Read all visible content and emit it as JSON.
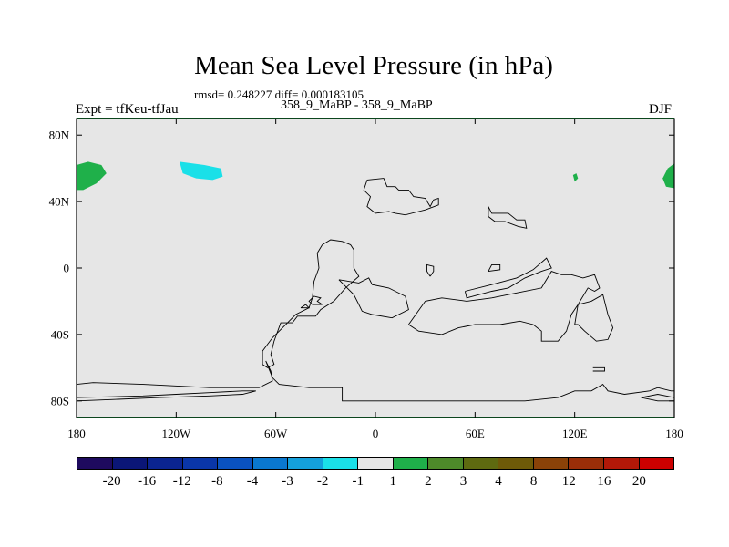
{
  "header": {
    "title": "Mean Sea Level Pressure (in hPa)",
    "stats": "rmsd= 0.248227 diff= 0.000183105",
    "left_label": "Expt = tfKeu-tfJau",
    "center_label": "358_9_MaBP - 358_9_MaBP",
    "right_label": "DJF"
  },
  "colors": {
    "background_field": "#e6e6e6",
    "coastline": "#000000",
    "frame_accent": "#1fb04a"
  },
  "chart_data": {
    "type": "heatmap",
    "projection": "cylindrical-equidistant",
    "xlim": [
      -180,
      180
    ],
    "ylim": [
      -90,
      90
    ],
    "x_ticks": [
      {
        "value": -180,
        "label": "180"
      },
      {
        "value": -120,
        "label": "120W"
      },
      {
        "value": -60,
        "label": "60W"
      },
      {
        "value": 0,
        "label": "0"
      },
      {
        "value": 60,
        "label": "60E"
      },
      {
        "value": 120,
        "label": "120E"
      },
      {
        "value": 180,
        "label": "180"
      }
    ],
    "y_ticks": [
      {
        "value": 80,
        "label": "80N"
      },
      {
        "value": 40,
        "label": "40N"
      },
      {
        "value": 0,
        "label": "0"
      },
      {
        "value": -40,
        "label": "40S"
      },
      {
        "value": -80,
        "label": "80S"
      }
    ],
    "colorbar": {
      "colors": [
        "#1e0a5e",
        "#0b1677",
        "#0b2490",
        "#0a36a8",
        "#0a52c0",
        "#0a78d0",
        "#14a0dc",
        "#1ae0e8",
        "#e6e6e6",
        "#1fb04a",
        "#4d8a2a",
        "#5e6a10",
        "#6e5a08",
        "#8a4208",
        "#9a2e08",
        "#b21808",
        "#cc0000"
      ],
      "labels": [
        "-20",
        "-16",
        "-12",
        "-8",
        "-4",
        "-3",
        "-2",
        "-1",
        "1",
        "2",
        "3",
        "4",
        "8",
        "12",
        "16",
        "20"
      ]
    },
    "anomaly_regions": [
      {
        "color": "#1fb04a",
        "value_range": "1 to 2",
        "points": [
          [
            -180,
            62
          ],
          [
            -173,
            64
          ],
          [
            -165,
            62
          ],
          [
            -162,
            57
          ],
          [
            -168,
            51
          ],
          [
            -176,
            47
          ],
          [
            -180,
            47
          ]
        ]
      },
      {
        "color": "#1fb04a",
        "value_range": "1 to 2",
        "points": [
          [
            180,
            63
          ],
          [
            176,
            60
          ],
          [
            173,
            54
          ],
          [
            175,
            49
          ],
          [
            180,
            48
          ]
        ]
      },
      {
        "color": "#1ae0e8",
        "value_range": "-2 to -1",
        "points": [
          [
            -118,
            64
          ],
          [
            -103,
            62
          ],
          [
            -93,
            60
          ],
          [
            -92,
            55
          ],
          [
            -98,
            53
          ],
          [
            -108,
            54
          ],
          [
            -116,
            57
          ]
        ]
      },
      {
        "color": "#1fb04a",
        "value_range": "1 to 2",
        "points": [
          [
            119,
            56
          ],
          [
            121,
            57
          ],
          [
            122,
            54
          ],
          [
            120,
            52
          ]
        ]
      }
    ],
    "coastlines": [
      [
        [
          -5,
          53
        ],
        [
          5,
          54
        ],
        [
          7,
          49
        ],
        [
          12,
          49
        ],
        [
          14,
          47
        ],
        [
          20,
          47
        ],
        [
          23,
          43
        ],
        [
          30,
          42
        ],
        [
          33,
          37
        ],
        [
          35,
          41
        ],
        [
          38,
          42
        ],
        [
          38,
          38
        ],
        [
          30,
          35
        ],
        [
          26,
          34
        ],
        [
          18,
          32
        ],
        [
          12,
          33
        ],
        [
          8,
          34
        ],
        [
          0,
          33
        ],
        [
          -5,
          37
        ],
        [
          -3,
          43
        ],
        [
          -7,
          47
        ],
        [
          -5,
          53
        ]
      ],
      [
        [
          68,
          37
        ],
        [
          70,
          33
        ],
        [
          80,
          33
        ],
        [
          85,
          29
        ],
        [
          90,
          29
        ],
        [
          91,
          24
        ],
        [
          86,
          25
        ],
        [
          78,
          28
        ],
        [
          72,
          28
        ],
        [
          68,
          31
        ],
        [
          68,
          37
        ]
      ],
      [
        [
          -32,
          14
        ],
        [
          -27,
          17
        ],
        [
          -20,
          16
        ],
        [
          -15,
          14
        ],
        [
          -13,
          11
        ],
        [
          -13,
          0
        ],
        [
          -10,
          -5
        ],
        [
          -18,
          -12
        ],
        [
          -25,
          -20
        ],
        [
          -33,
          -25
        ],
        [
          -36,
          -29
        ],
        [
          -47,
          -29
        ],
        [
          -50,
          -33
        ],
        [
          -57,
          -33
        ],
        [
          -61,
          -44
        ],
        [
          -63,
          -52
        ],
        [
          -61,
          -58
        ],
        [
          -65,
          -60
        ],
        [
          -68,
          -58
        ],
        [
          -68,
          -50
        ],
        [
          -62,
          -42
        ],
        [
          -55,
          -35
        ],
        [
          -48,
          -28
        ],
        [
          -40,
          -24
        ],
        [
          -38,
          -18
        ],
        [
          -37,
          -8
        ],
        [
          -34,
          0
        ],
        [
          -35,
          9
        ],
        [
          -32,
          14
        ]
      ],
      [
        [
          -22,
          -7
        ],
        [
          -10,
          -9
        ],
        [
          -4,
          -6
        ],
        [
          -2,
          -10
        ],
        [
          8,
          -12
        ],
        [
          18,
          -17
        ],
        [
          20,
          -25
        ],
        [
          10,
          -30
        ],
        [
          -2,
          -28
        ],
        [
          -8,
          -26
        ],
        [
          -10,
          -22
        ],
        [
          -13,
          -16
        ],
        [
          -22,
          -7
        ]
      ],
      [
        [
          20,
          -34
        ],
        [
          26,
          -38
        ],
        [
          40,
          -40
        ],
        [
          50,
          -36
        ],
        [
          60,
          -34
        ],
        [
          75,
          -34
        ],
        [
          87,
          -32
        ],
        [
          95,
          -34
        ],
        [
          100,
          -38
        ],
        [
          100,
          -44
        ],
        [
          110,
          -44
        ],
        [
          115,
          -38
        ],
        [
          118,
          -28
        ],
        [
          122,
          -22
        ],
        [
          130,
          -20
        ],
        [
          137,
          -16
        ],
        [
          140,
          -28
        ],
        [
          143,
          -36
        ],
        [
          140,
          -43
        ],
        [
          133,
          -44
        ],
        [
          126,
          -38
        ],
        [
          122,
          -34
        ],
        [
          120,
          -34
        ],
        [
          122,
          -22
        ],
        [
          128,
          -12
        ],
        [
          132,
          -14
        ],
        [
          135,
          -12
        ],
        [
          132,
          -4
        ],
        [
          125,
          -6
        ],
        [
          118,
          -4
        ],
        [
          112,
          -4
        ],
        [
          106,
          -2
        ],
        [
          100,
          -12
        ],
        [
          85,
          -15
        ],
        [
          70,
          -18
        ],
        [
          55,
          -20
        ],
        [
          40,
          -18
        ],
        [
          30,
          -20
        ],
        [
          20,
          -34
        ]
      ],
      [
        [
          54,
          -14
        ],
        [
          55,
          -18
        ],
        [
          70,
          -14
        ],
        [
          80,
          -12
        ],
        [
          90,
          -6
        ],
        [
          100,
          -2
        ],
        [
          106,
          0
        ],
        [
          103,
          6
        ],
        [
          95,
          -1
        ],
        [
          85,
          -6
        ],
        [
          70,
          -10
        ],
        [
          54,
          -14
        ]
      ],
      [
        [
          -180,
          -70
        ],
        [
          -170,
          -69
        ],
        [
          -140,
          -70
        ],
        [
          -100,
          -72
        ],
        [
          -70,
          -72
        ],
        [
          -62,
          -68
        ],
        [
          -63,
          -62
        ],
        [
          -66,
          -56
        ],
        [
          -62,
          -66
        ],
        [
          -58,
          -70
        ],
        [
          -40,
          -72
        ],
        [
          -20,
          -72
        ],
        [
          -20,
          -80
        ],
        [
          0,
          -80
        ],
        [
          30,
          -80
        ],
        [
          60,
          -80
        ],
        [
          90,
          -80
        ],
        [
          110,
          -78
        ],
        [
          120,
          -74
        ],
        [
          130,
          -74
        ],
        [
          137,
          -70
        ],
        [
          140,
          -74
        ],
        [
          150,
          -76
        ],
        [
          165,
          -74
        ],
        [
          170,
          -72
        ],
        [
          178,
          -74
        ],
        [
          180,
          -74
        ],
        [
          180,
          -78
        ],
        [
          170,
          -76
        ],
        [
          160,
          -78
        ],
        [
          170,
          -80
        ],
        [
          180,
          -80
        ],
        [
          180,
          -90
        ],
        [
          -180,
          -90
        ],
        [
          -180,
          -78
        ],
        [
          -140,
          -77
        ],
        [
          -120,
          -76
        ],
        [
          -100,
          -75
        ],
        [
          -80,
          -74
        ],
        [
          -72,
          -74
        ],
        [
          -80,
          -76
        ],
        [
          -100,
          -77
        ],
        [
          -130,
          -78
        ],
        [
          -155,
          -79
        ],
        [
          -180,
          -80
        ]
      ],
      [
        [
          -32,
          -22
        ],
        [
          -35,
          -20
        ],
        [
          -33,
          -18
        ],
        [
          -37,
          -17
        ],
        [
          -40,
          -20
        ],
        [
          -38,
          -22
        ],
        [
          -32,
          -22
        ]
      ],
      [
        [
          -45,
          -24
        ],
        [
          -40,
          -24
        ],
        [
          -42,
          -22
        ],
        [
          -45,
          -24
        ]
      ],
      [
        [
          33,
          -5
        ],
        [
          35,
          -2
        ],
        [
          35,
          1
        ],
        [
          31,
          2
        ],
        [
          31,
          -2
        ],
        [
          33,
          -5
        ]
      ],
      [
        [
          68,
          -2
        ],
        [
          75,
          -1
        ],
        [
          75,
          2
        ],
        [
          70,
          2
        ],
        [
          68,
          -2
        ]
      ],
      [
        [
          131,
          -60
        ],
        [
          138,
          -60
        ],
        [
          138,
          -62
        ],
        [
          131,
          -62
        ]
      ]
    ]
  }
}
